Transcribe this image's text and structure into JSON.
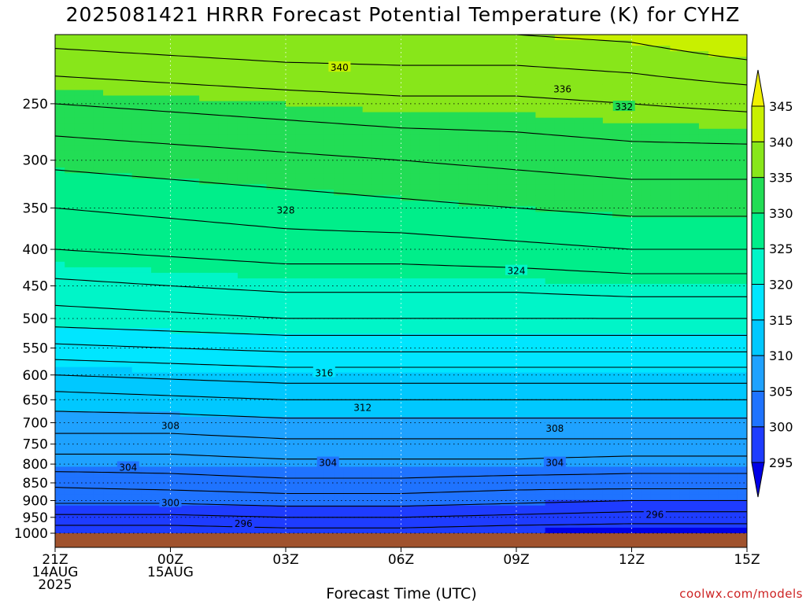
{
  "title": "2025081421 HRRR Forecast Potential Temperature (K) for CYHZ",
  "xlabel": "Forecast Time (UTC)",
  "watermark": "coolwx.com/models",
  "chart_data": {
    "type": "heatmap",
    "title": "2025081421 HRRR Forecast Potential Temperature (K) for CYHZ",
    "xlabel": "Forecast Time (UTC)",
    "ylabel": "",
    "y_scale": "log-pressure (inverted)",
    "y_range_hPa": [
      1000,
      200
    ],
    "x_range_hours_from_start": [
      0,
      18
    ],
    "x_ticks": [
      {
        "hour": 0,
        "lines": [
          "21Z",
          "14AUG",
          "2025"
        ]
      },
      {
        "hour": 3,
        "lines": [
          "00Z",
          "15AUG"
        ]
      },
      {
        "hour": 6,
        "lines": [
          "03Z"
        ]
      },
      {
        "hour": 9,
        "lines": [
          "06Z"
        ]
      },
      {
        "hour": 12,
        "lines": [
          "09Z"
        ]
      },
      {
        "hour": 15,
        "lines": [
          "12Z"
        ]
      },
      {
        "hour": 18,
        "lines": [
          "15Z"
        ]
      }
    ],
    "y_ticks": [
      250,
      300,
      350,
      400,
      450,
      500,
      550,
      600,
      650,
      700,
      750,
      800,
      850,
      900,
      950,
      1000
    ],
    "grid": true,
    "colorbar": {
      "levels": [
        295,
        300,
        305,
        310,
        315,
        320,
        325,
        330,
        335,
        340,
        345
      ],
      "colors": [
        "#0000e6",
        "#1e3cff",
        "#1f73ff",
        "#1fa2ff",
        "#00c8ff",
        "#00e6ff",
        "#00f5c8",
        "#00ee8a",
        "#22dd55",
        "#88e61a",
        "#c8f000",
        "#f0f000"
      ]
    },
    "hours": [
      0,
      3,
      6,
      9,
      12,
      15,
      18
    ],
    "theta_profiles": [
      {
        "hour": 0,
        "pressure": [
          1000,
          950,
          900,
          850,
          800,
          750,
          700,
          650,
          600,
          550,
          500,
          450,
          400,
          350,
          300,
          250,
          200
        ],
        "theta": [
          294.5,
          297.5,
          300.5,
          302.5,
          305,
          307,
          309,
          311,
          314,
          317.5,
          321,
          323.5,
          326,
          328,
          330.5,
          334,
          339
        ]
      },
      {
        "hour": 3,
        "pressure": [
          1000,
          950,
          900,
          850,
          800,
          750,
          700,
          650,
          600,
          550,
          500,
          450,
          400,
          350,
          300,
          250,
          200
        ],
        "theta": [
          294.5,
          297.5,
          300.5,
          303,
          305,
          307,
          309,
          311.5,
          314.5,
          318,
          321.5,
          324,
          326.5,
          328.5,
          331,
          334.5,
          339.5
        ]
      },
      {
        "hour": 6,
        "pressure": [
          1000,
          950,
          900,
          850,
          800,
          750,
          700,
          650,
          600,
          550,
          500,
          450,
          400,
          350,
          300,
          250,
          200
        ],
        "theta": [
          295,
          298,
          301,
          303.5,
          305.5,
          307.5,
          309.5,
          312,
          315,
          318.5,
          322,
          324.5,
          327,
          329,
          331.5,
          335,
          340
        ]
      },
      {
        "hour": 9,
        "pressure": [
          1000,
          950,
          900,
          850,
          800,
          750,
          700,
          650,
          600,
          550,
          500,
          450,
          400,
          350,
          300,
          250,
          200
        ],
        "theta": [
          295,
          298,
          301,
          303.5,
          305.5,
          307.5,
          309.5,
          312,
          315,
          318.5,
          322,
          324.5,
          327,
          329.5,
          332,
          335.5,
          340
        ]
      },
      {
        "hour": 12,
        "pressure": [
          1000,
          950,
          900,
          850,
          800,
          750,
          700,
          650,
          600,
          550,
          500,
          450,
          400,
          350,
          300,
          250,
          200
        ],
        "theta": [
          294.5,
          297.5,
          300.5,
          303,
          305.5,
          307.5,
          309.5,
          312,
          315,
          318.5,
          322,
          324.5,
          327.5,
          330,
          332.5,
          335.5,
          340
        ]
      },
      {
        "hour": 15,
        "pressure": [
          1000,
          950,
          900,
          850,
          800,
          750,
          700,
          650,
          600,
          550,
          500,
          450,
          400,
          350,
          300,
          250,
          200
        ],
        "theta": [
          294.5,
          297,
          300,
          303,
          305,
          307.5,
          309.5,
          312,
          315,
          318.5,
          322,
          325,
          328,
          330.5,
          333,
          336,
          340.5
        ]
      },
      {
        "hour": 18,
        "pressure": [
          1000,
          950,
          900,
          850,
          800,
          750,
          700,
          650,
          600,
          550,
          500,
          450,
          400,
          350,
          300,
          250,
          200
        ],
        "theta": [
          294.5,
          297,
          300,
          303,
          305,
          307.5,
          309.5,
          312,
          315,
          318.5,
          322,
          325,
          328,
          330.5,
          333,
          336.5,
          342
        ]
      }
    ],
    "contour_interval": 2,
    "contour_labels": [
      {
        "value": "340",
        "hour": 7.4,
        "pressure": 222
      },
      {
        "value": "336",
        "hour": 13.2,
        "pressure": 238
      },
      {
        "value": "332",
        "hour": 14.8,
        "pressure": 252
      },
      {
        "value": "328",
        "hour": 6.0,
        "pressure": 352
      },
      {
        "value": "324",
        "hour": 12.0,
        "pressure": 428
      },
      {
        "value": "316",
        "hour": 7.0,
        "pressure": 595
      },
      {
        "value": "312",
        "hour": 8.0,
        "pressure": 665
      },
      {
        "value": "308",
        "hour": 3.0,
        "pressure": 705
      },
      {
        "value": "308",
        "hour": 13.0,
        "pressure": 712
      },
      {
        "value": "304",
        "hour": 1.9,
        "pressure": 807
      },
      {
        "value": "304",
        "hour": 7.1,
        "pressure": 795
      },
      {
        "value": "304",
        "hour": 13.0,
        "pressure": 795
      },
      {
        "value": "300",
        "hour": 3.0,
        "pressure": 905
      },
      {
        "value": "296",
        "hour": 4.9,
        "pressure": 968
      },
      {
        "value": "296",
        "hour": 15.6,
        "pressure": 940
      }
    ],
    "ground_below_hPa": 1000
  }
}
